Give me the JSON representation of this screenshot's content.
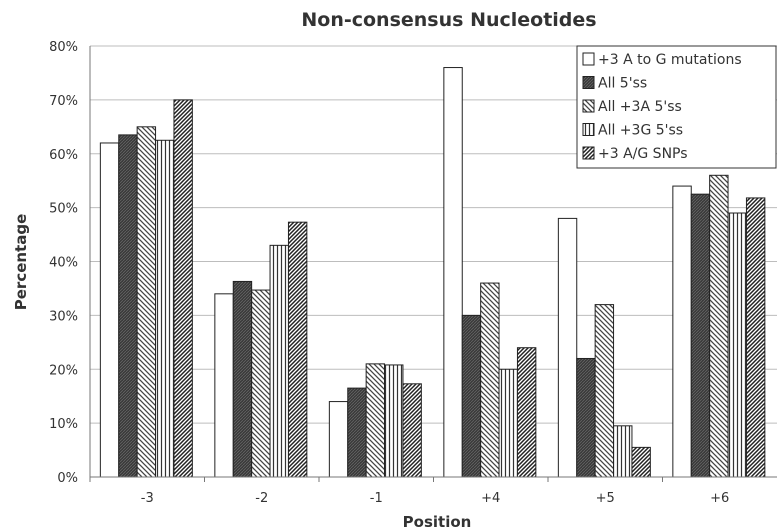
{
  "chart_data": {
    "type": "bar",
    "title": "Non-consensus Nucleotides",
    "xlabel": "Position",
    "ylabel": "Percentage",
    "ylim": [
      0,
      80
    ],
    "y_ticks": [
      "0%",
      "10%",
      "20%",
      "30%",
      "40%",
      "50%",
      "60%",
      "70%",
      "80%"
    ],
    "categories": [
      "-3",
      "-2",
      "-1",
      "+4",
      "+5",
      "+6"
    ],
    "grid": true,
    "legend_position": "top-right",
    "series": [
      {
        "name": "+3 A to G mutations",
        "pattern": "white",
        "values": [
          62,
          34,
          14,
          76,
          48,
          54
        ]
      },
      {
        "name": "All 5'ss",
        "pattern": "dark",
        "values": [
          63.5,
          36.3,
          16.5,
          30,
          22,
          52.5
        ]
      },
      {
        "name": "All +3A 5'ss",
        "pattern": "diagonal-back",
        "values": [
          65,
          34.7,
          21,
          36,
          32,
          56
        ]
      },
      {
        "name": "All +3G 5'ss",
        "pattern": "vertical",
        "values": [
          62.5,
          43,
          20.8,
          20,
          9.5,
          49
        ]
      },
      {
        "name": "+3 A/G SNPs",
        "pattern": "diagonal-forward",
        "values": [
          70,
          47.3,
          17.3,
          24,
          5.5,
          51.8
        ]
      }
    ]
  }
}
